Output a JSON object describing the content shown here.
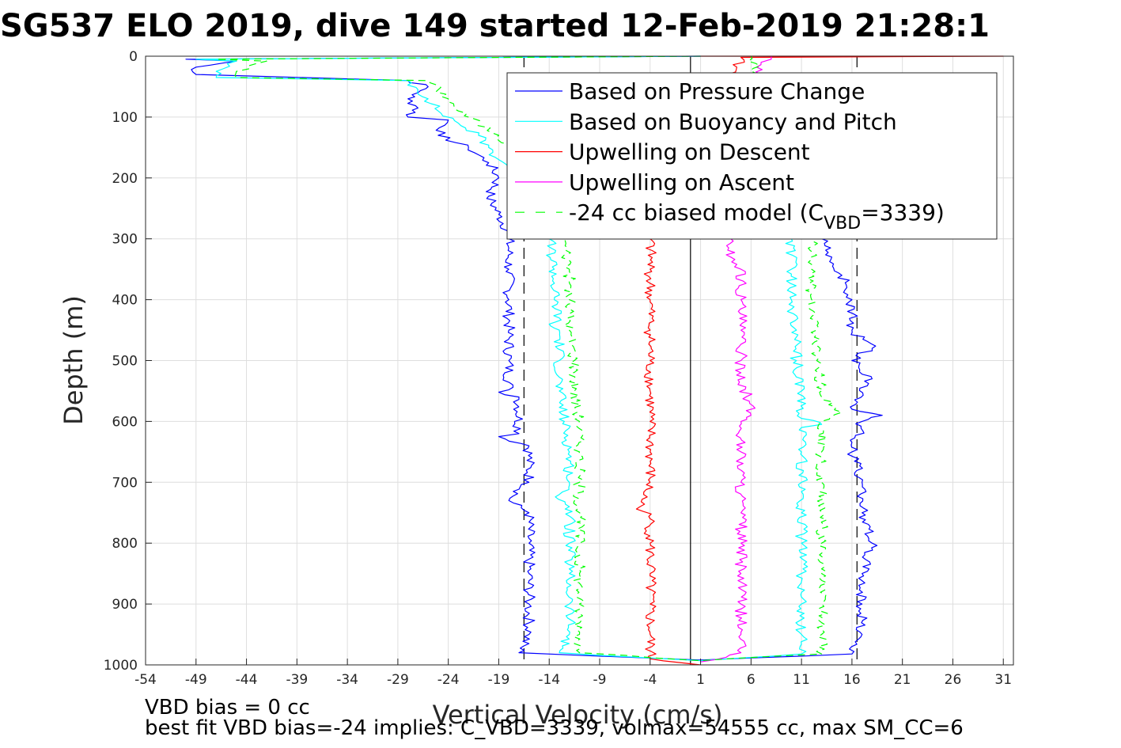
{
  "chart_data": {
    "type": "line",
    "title": "SG537 ELO 2019, dive 149 started 12-Feb-2019 21:28:1",
    "xlabel": "Vertical Velocity (cm/s)",
    "ylabel": "Depth (m)",
    "xlim": [
      -54,
      32
    ],
    "ylim": [
      0,
      1000
    ],
    "y_reversed": true,
    "grid": true,
    "x_ticks": [
      -54,
      -49,
      -44,
      -39,
      -34,
      -29,
      -24,
      -19,
      -14,
      -9,
      -4,
      1,
      6,
      11,
      16,
      21,
      26,
      31
    ],
    "y_ticks": [
      0,
      100,
      200,
      300,
      400,
      500,
      600,
      700,
      800,
      900,
      1000
    ],
    "legend_position": "top-right",
    "legend": [
      {
        "label": "Based on Pressure Change",
        "color": "#0000ff",
        "dash": "solid"
      },
      {
        "label": "Based on Buoyancy and Pitch",
        "color": "#00ffff",
        "dash": "solid"
      },
      {
        "label": "Upwelling on Descent",
        "color": "#ff0000",
        "dash": "solid"
      },
      {
        "label": "Upwelling on Ascent",
        "color": "#ff00ff",
        "dash": "solid"
      },
      {
        "label": "-24 cc biased model (C",
        "sub": "VBD",
        "suffix": "=3339)",
        "color": "#00ff00",
        "dash": "dashed"
      }
    ],
    "series": [
      {
        "color": "#0000ff",
        "width": 1.2,
        "points": [
          [
            1,
            0
          ],
          [
            -50,
            5
          ],
          [
            -45,
            8
          ],
          [
            -49,
            18
          ],
          [
            -49,
            30
          ],
          [
            -28,
            40
          ],
          [
            -26,
            50
          ],
          [
            -27,
            60
          ],
          [
            -28,
            70
          ],
          [
            -27,
            85
          ],
          [
            -28,
            100
          ],
          [
            -24,
            105
          ],
          [
            -25,
            130
          ],
          [
            -22,
            150
          ],
          [
            -20,
            175
          ],
          [
            -19,
            200
          ],
          [
            -20,
            230
          ],
          [
            -19,
            260
          ],
          [
            -18,
            290
          ],
          [
            -18,
            300
          ],
          [
            -18,
            350
          ],
          [
            -18,
            400
          ],
          [
            -18,
            450
          ],
          [
            -18,
            500
          ],
          [
            -18,
            548
          ],
          [
            -19,
            552
          ],
          [
            -17,
            560
          ],
          [
            -17,
            620
          ],
          [
            -19,
            625
          ],
          [
            -16,
            640
          ],
          [
            -16,
            700
          ],
          [
            -18,
            730
          ],
          [
            -16,
            750
          ],
          [
            -16,
            800
          ],
          [
            -16,
            850
          ],
          [
            -16,
            900
          ],
          [
            -16,
            950
          ],
          [
            -17,
            980
          ],
          [
            1,
            992
          ],
          [
            16,
            982
          ],
          [
            17,
            950
          ],
          [
            17,
            900
          ],
          [
            17,
            850
          ],
          [
            18,
            800
          ],
          [
            17,
            750
          ],
          [
            17,
            700
          ],
          [
            16,
            650
          ],
          [
            17,
            600
          ],
          [
            19,
            590
          ],
          [
            16,
            580
          ],
          [
            18,
            530
          ],
          [
            16,
            500
          ],
          [
            18,
            480
          ],
          [
            16,
            450
          ],
          [
            16,
            400
          ],
          [
            15,
            360
          ],
          [
            14,
            330
          ],
          [
            13,
            300
          ]
        ]
      },
      {
        "color": "#00ffff",
        "width": 1.2,
        "points": [
          [
            1,
            0
          ],
          [
            -49,
            5
          ],
          [
            -45,
            8
          ],
          [
            -47,
            25
          ],
          [
            -47,
            35
          ],
          [
            -28,
            40
          ],
          [
            -27,
            55
          ],
          [
            -26,
            70
          ],
          [
            -25,
            90
          ],
          [
            -23,
            110
          ],
          [
            -21,
            130
          ],
          [
            -20,
            150
          ],
          [
            -19,
            170
          ],
          [
            -17,
            190
          ],
          [
            -16,
            220
          ],
          [
            -15,
            250
          ],
          [
            -14,
            280
          ],
          [
            -14,
            300
          ],
          [
            -13.5,
            350
          ],
          [
            -13.5,
            400
          ],
          [
            -13,
            430
          ],
          [
            -14,
            440
          ],
          [
            -13,
            450
          ],
          [
            -13,
            500
          ],
          [
            -13,
            550
          ],
          [
            -12.5,
            600
          ],
          [
            -12,
            650
          ],
          [
            -12,
            700
          ],
          [
            -13,
            720
          ],
          [
            -12,
            740
          ],
          [
            -12,
            800
          ],
          [
            -12,
            850
          ],
          [
            -12,
            900
          ],
          [
            -12,
            950
          ],
          [
            -13,
            980
          ],
          [
            1,
            993
          ],
          [
            11,
            982
          ],
          [
            11,
            950
          ],
          [
            11,
            900
          ],
          [
            11,
            850
          ],
          [
            11,
            800
          ],
          [
            11,
            750
          ],
          [
            11,
            700
          ],
          [
            11,
            650
          ],
          [
            11,
            610
          ],
          [
            13,
            605
          ],
          [
            11,
            595
          ],
          [
            11,
            550
          ],
          [
            10.5,
            500
          ],
          [
            10.5,
            450
          ],
          [
            10,
            400
          ],
          [
            10,
            350
          ],
          [
            10,
            300
          ]
        ]
      },
      {
        "color": "#ff0000",
        "width": 1.2,
        "points": [
          [
            1,
            0
          ],
          [
            31,
            0
          ],
          [
            5,
            2
          ],
          [
            -4,
            300
          ],
          [
            -4,
            350
          ],
          [
            -4,
            400
          ],
          [
            -4,
            450
          ],
          [
            -4,
            500
          ],
          [
            -4,
            550
          ],
          [
            -4,
            600
          ],
          [
            -4,
            650
          ],
          [
            -4,
            700
          ],
          [
            -5,
            740
          ],
          [
            -4,
            760
          ],
          [
            -4,
            800
          ],
          [
            -4,
            850
          ],
          [
            -4,
            900
          ],
          [
            -4,
            950
          ],
          [
            -4,
            990
          ],
          [
            1,
            1000
          ]
        ]
      },
      {
        "color": "#ff00ff",
        "width": 1.2,
        "points": [
          [
            8,
            0
          ],
          [
            8,
            5
          ],
          [
            7,
            10
          ],
          [
            4,
            300
          ],
          [
            4,
            330
          ],
          [
            5,
            350
          ],
          [
            5,
            400
          ],
          [
            5,
            450
          ],
          [
            5,
            500
          ],
          [
            5,
            520
          ],
          [
            6,
            590
          ],
          [
            5,
            600
          ],
          [
            5,
            650
          ],
          [
            5,
            700
          ],
          [
            5,
            750
          ],
          [
            5,
            800
          ],
          [
            5,
            850
          ],
          [
            5,
            900
          ],
          [
            5,
            950
          ],
          [
            5,
            980
          ],
          [
            1,
            995
          ]
        ]
      }
    ],
    "dashed_series": [
      {
        "color": "#00ff00",
        "width": 1.2,
        "points": [
          [
            1,
            0
          ],
          [
            -47,
            5
          ],
          [
            -42,
            8
          ],
          [
            -45,
            25
          ],
          [
            -45,
            35
          ],
          [
            -26,
            40
          ],
          [
            -25,
            55
          ],
          [
            -24,
            70
          ],
          [
            -23,
            90
          ],
          [
            -21,
            110
          ],
          [
            -19,
            130
          ],
          [
            -18,
            150
          ],
          [
            -16,
            170
          ],
          [
            -14,
            190
          ],
          [
            -13,
            230
          ],
          [
            -12.5,
            260
          ],
          [
            -12.5,
            300
          ],
          [
            -12,
            350
          ],
          [
            -12,
            400
          ],
          [
            -12,
            450
          ],
          [
            -11.5,
            500
          ],
          [
            -11.5,
            550
          ],
          [
            -11,
            600
          ],
          [
            -11,
            650
          ],
          [
            -11,
            700
          ],
          [
            -11,
            750
          ],
          [
            -11,
            800
          ],
          [
            -11,
            850
          ],
          [
            -11,
            900
          ],
          [
            -11,
            950
          ],
          [
            -11,
            980
          ],
          [
            1,
            993
          ],
          [
            13,
            982
          ],
          [
            13,
            950
          ],
          [
            13,
            900
          ],
          [
            13,
            850
          ],
          [
            13,
            800
          ],
          [
            13,
            750
          ],
          [
            13,
            700
          ],
          [
            13,
            650
          ],
          [
            13,
            600
          ],
          [
            15,
            585
          ],
          [
            13,
            560
          ],
          [
            12.5,
            500
          ],
          [
            12.5,
            450
          ],
          [
            12,
            400
          ],
          [
            12,
            350
          ],
          [
            12,
            300
          ],
          [
            6,
            0
          ]
        ]
      }
    ],
    "reference_lines": [
      {
        "x": -16.5,
        "color": "#000000",
        "dash": "dashed"
      },
      {
        "x": 0,
        "color": "#000000",
        "dash": "solid"
      },
      {
        "x": 16.5,
        "color": "#000000",
        "dash": "dashed"
      }
    ]
  },
  "footer": {
    "line1": "VBD bias = 0 cc",
    "line2": "best fit VBD bias=-24 implies: C_VBD=3339, volmax=54555 cc, max SM_CC=6"
  }
}
